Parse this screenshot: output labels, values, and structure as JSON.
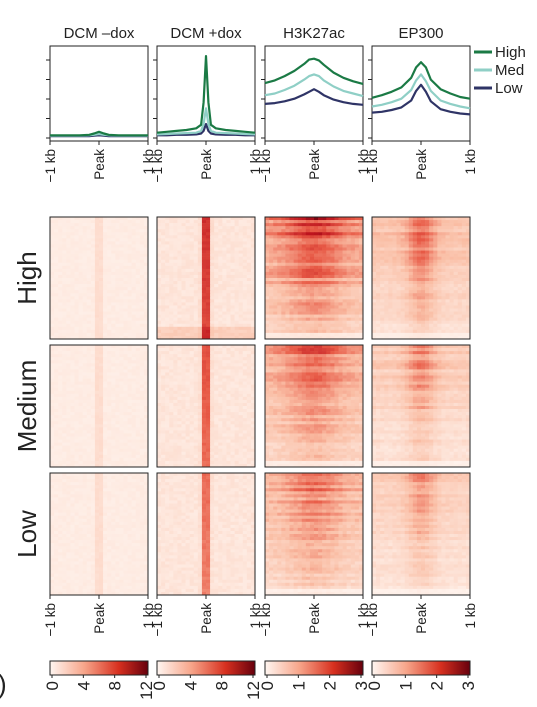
{
  "columns": [
    "DCM –dox",
    "DCM +dox",
    "H3K27ac",
    "EP300"
  ],
  "axis_ticks": [
    "−1 kb",
    "Peak",
    "1 kb"
  ],
  "row_groups": [
    "High",
    "Medium",
    "Low"
  ],
  "corner_mark": ")",
  "legend": {
    "entries": [
      {
        "label": "High",
        "color": "#1b7a45"
      },
      {
        "label": "Med",
        "color": "#8fcfc6"
      },
      {
        "label": "Low",
        "color": "#2f3466"
      }
    ]
  },
  "colors": {
    "heat_low": "#fff6f1",
    "heat_mid": "#e3483a",
    "heat_high": "#67000d",
    "frame": "#222222"
  },
  "chart_data": [
    {
      "type": "line",
      "panel": "profile",
      "title": "DCM –dox",
      "x": [
        -1,
        -0.8,
        -0.6,
        -0.4,
        -0.2,
        -0.1,
        0,
        0.1,
        0.2,
        0.4,
        0.6,
        0.8,
        1
      ],
      "xticks": [
        "−1 kb",
        "Peak",
        "1 kb"
      ],
      "ylim": [
        0,
        1
      ],
      "series": [
        {
          "name": "High",
          "values": [
            0.02,
            0.02,
            0.02,
            0.02,
            0.025,
            0.04,
            0.06,
            0.04,
            0.025,
            0.02,
            0.02,
            0.02,
            0.02
          ]
        },
        {
          "name": "Med",
          "values": [
            0.015,
            0.015,
            0.015,
            0.015,
            0.02,
            0.025,
            0.035,
            0.025,
            0.02,
            0.015,
            0.015,
            0.015,
            0.015
          ]
        },
        {
          "name": "Low",
          "values": [
            0.01,
            0.01,
            0.01,
            0.01,
            0.01,
            0.015,
            0.02,
            0.015,
            0.01,
            0.01,
            0.01,
            0.01,
            0.01
          ]
        }
      ]
    },
    {
      "type": "line",
      "panel": "profile",
      "title": "DCM +dox",
      "x": [
        -1,
        -0.8,
        -0.6,
        -0.4,
        -0.2,
        -0.1,
        -0.05,
        0,
        0.05,
        0.1,
        0.2,
        0.4,
        0.6,
        0.8,
        1
      ],
      "xticks": [
        "−1 kb",
        "Peak",
        "1 kb"
      ],
      "ylim": [
        0,
        1
      ],
      "series": [
        {
          "name": "High",
          "values": [
            0.05,
            0.06,
            0.07,
            0.08,
            0.1,
            0.14,
            0.4,
            0.93,
            0.4,
            0.14,
            0.1,
            0.08,
            0.07,
            0.06,
            0.05
          ]
        },
        {
          "name": "Med",
          "values": [
            0.03,
            0.035,
            0.04,
            0.045,
            0.05,
            0.07,
            0.15,
            0.33,
            0.15,
            0.07,
            0.05,
            0.045,
            0.04,
            0.035,
            0.03
          ]
        },
        {
          "name": "Low",
          "values": [
            0.02,
            0.02,
            0.025,
            0.025,
            0.03,
            0.04,
            0.07,
            0.15,
            0.07,
            0.04,
            0.03,
            0.025,
            0.025,
            0.02,
            0.02
          ]
        }
      ]
    },
    {
      "type": "line",
      "panel": "profile",
      "title": "H3K27ac",
      "x": [
        -1,
        -0.8,
        -0.6,
        -0.4,
        -0.2,
        -0.1,
        0,
        0.1,
        0.2,
        0.4,
        0.6,
        0.8,
        1
      ],
      "xticks": [
        "−1 kb",
        "Peak",
        "1 kb"
      ],
      "ylim": [
        0,
        1
      ],
      "series": [
        {
          "name": "High",
          "values": [
            0.62,
            0.65,
            0.7,
            0.76,
            0.84,
            0.89,
            0.9,
            0.88,
            0.83,
            0.74,
            0.68,
            0.64,
            0.61
          ]
        },
        {
          "name": "Med",
          "values": [
            0.48,
            0.5,
            0.54,
            0.59,
            0.66,
            0.7,
            0.72,
            0.7,
            0.65,
            0.58,
            0.53,
            0.5,
            0.47
          ]
        },
        {
          "name": "Low",
          "values": [
            0.38,
            0.39,
            0.41,
            0.44,
            0.49,
            0.52,
            0.55,
            0.52,
            0.48,
            0.43,
            0.4,
            0.38,
            0.37
          ]
        }
      ]
    },
    {
      "type": "line",
      "panel": "profile",
      "title": "EP300",
      "x": [
        -1,
        -0.8,
        -0.6,
        -0.4,
        -0.2,
        -0.1,
        0,
        0.1,
        0.2,
        0.4,
        0.6,
        0.8,
        1
      ],
      "xticks": [
        "−1 kb",
        "Peak",
        "1 kb"
      ],
      "ylim": [
        0,
        1
      ],
      "series": [
        {
          "name": "High",
          "values": [
            0.45,
            0.48,
            0.52,
            0.57,
            0.68,
            0.8,
            0.86,
            0.8,
            0.66,
            0.55,
            0.5,
            0.46,
            0.44
          ]
        },
        {
          "name": "Med",
          "values": [
            0.35,
            0.37,
            0.4,
            0.44,
            0.54,
            0.65,
            0.72,
            0.64,
            0.53,
            0.42,
            0.38,
            0.35,
            0.33
          ]
        },
        {
          "name": "Low",
          "values": [
            0.28,
            0.29,
            0.31,
            0.34,
            0.42,
            0.53,
            0.6,
            0.52,
            0.41,
            0.32,
            0.29,
            0.27,
            0.26
          ]
        }
      ]
    },
    {
      "type": "heatmap",
      "panel": "heatmap",
      "columns": [
        "DCM –dox",
        "DCM +dox",
        "H3K27ac",
        "EP300"
      ],
      "rows": [
        "High",
        "Medium",
        "Low"
      ],
      "xticks": [
        "−1 kb",
        "Peak",
        "1 kb"
      ],
      "colorbars": [
        {
          "column": "DCM –dox",
          "ticks": [
            "0",
            "4",
            "8",
            "12"
          ],
          "range": [
            0,
            12
          ]
        },
        {
          "column": "DCM +dox",
          "ticks": [
            "0",
            "4",
            "8",
            "12"
          ],
          "range": [
            0,
            12
          ]
        },
        {
          "column": "H3K27ac",
          "ticks": [
            "0",
            "1",
            "2",
            "3"
          ],
          "range": [
            0,
            3
          ]
        },
        {
          "column": "EP300",
          "ticks": [
            "0",
            "1",
            "2",
            "3"
          ],
          "range": [
            0,
            3
          ]
        }
      ]
    }
  ]
}
